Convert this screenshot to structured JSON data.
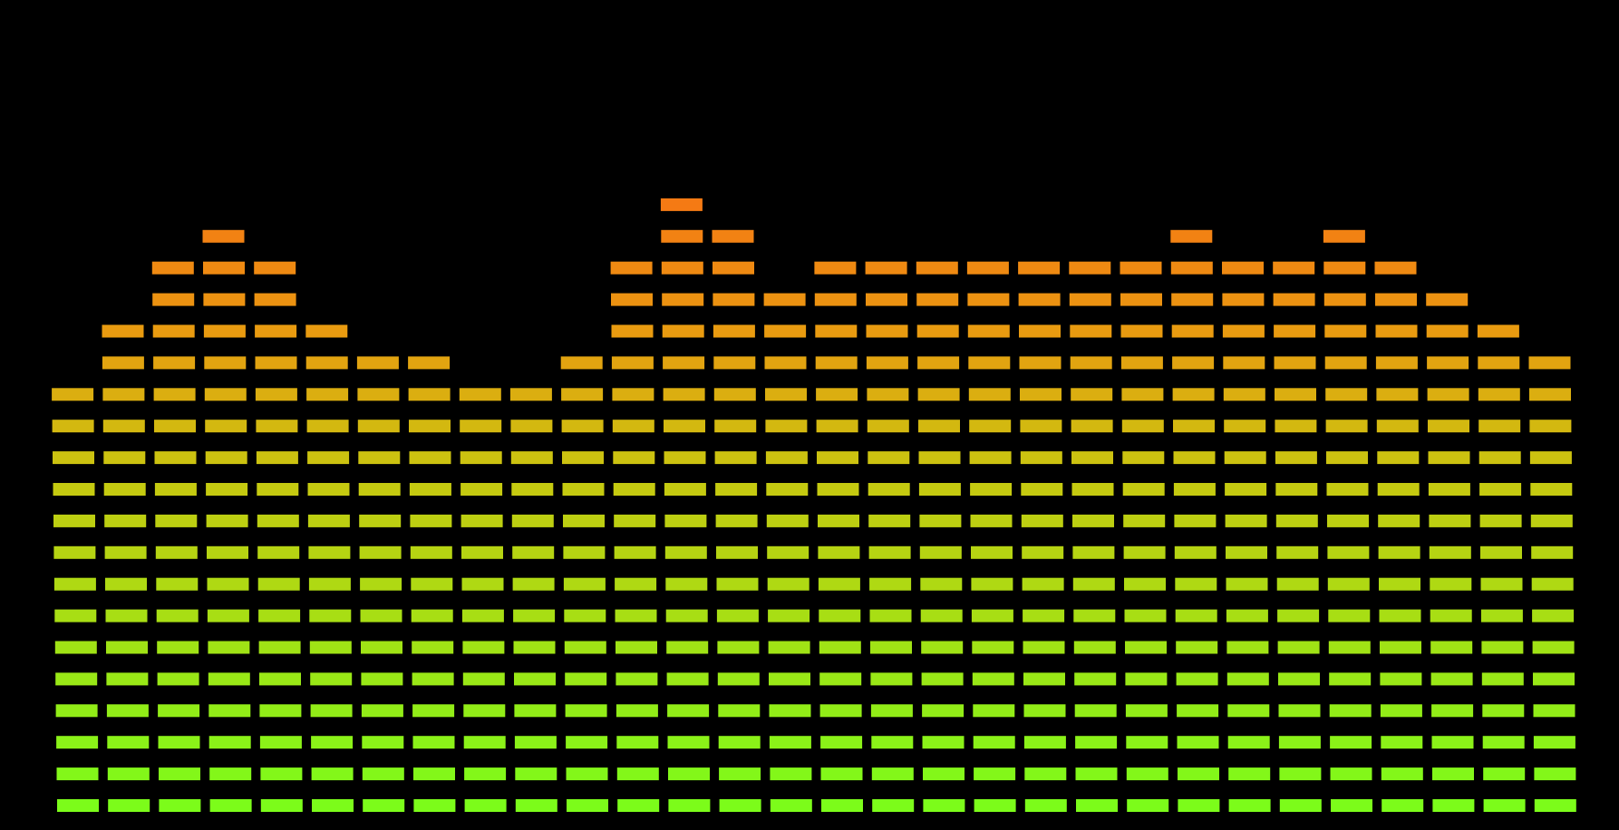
{
  "visualizer": {
    "type": "segmented-spectrum",
    "max_segments": 20,
    "bands": [
      {
        "segments": 14
      },
      {
        "segments": 16
      },
      {
        "segments": 18
      },
      {
        "segments": 19
      },
      {
        "segments": 18
      },
      {
        "segments": 16
      },
      {
        "segments": 15
      },
      {
        "segments": 15
      },
      {
        "segments": 14
      },
      {
        "segments": 14
      },
      {
        "segments": 15
      },
      {
        "segments": 18
      },
      {
        "segments": 20
      },
      {
        "segments": 19
      },
      {
        "segments": 17
      },
      {
        "segments": 18
      },
      {
        "segments": 18
      },
      {
        "segments": 18
      },
      {
        "segments": 18
      },
      {
        "segments": 18
      },
      {
        "segments": 18
      },
      {
        "segments": 18
      },
      {
        "segments": 19
      },
      {
        "segments": 18
      },
      {
        "segments": 18
      },
      {
        "segments": 19
      },
      {
        "segments": 18
      },
      {
        "segments": 17
      },
      {
        "segments": 16
      },
      {
        "segments": 15
      }
    ],
    "colors": {
      "background": "#000000",
      "low": "#7CFC1A",
      "mid": "#C8C810",
      "high": "#E89C10",
      "peak": "#F57A14"
    }
  }
}
